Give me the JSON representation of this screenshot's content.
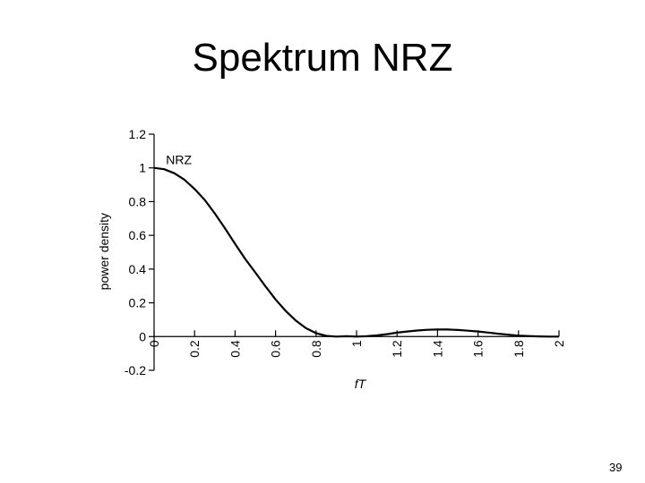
{
  "slide": {
    "title": "Spektrum NRZ",
    "page_number": "39"
  },
  "chart_data": {
    "type": "line",
    "title": "Spektrum NRZ",
    "xlabel": "fT",
    "ylabel": "power density",
    "xlim": [
      0,
      2
    ],
    "ylim": [
      -0.2,
      1.2
    ],
    "x_ticks": [
      0,
      0.2,
      0.4,
      0.6,
      0.8,
      1,
      1.2,
      1.4,
      1.6,
      1.8,
      2
    ],
    "x_tick_labels": [
      "0",
      "0.2",
      "0.4",
      "0.6",
      "0.8",
      "1",
      "1.2",
      "1.4",
      "1.6",
      "1.8",
      "2"
    ],
    "y_ticks": [
      -0.2,
      0,
      0.2,
      0.4,
      0.6,
      0.8,
      1,
      1.2
    ],
    "y_tick_labels": [
      "-0.2",
      "0",
      "0.2",
      "0.4",
      "0.6",
      "0.8",
      "1",
      "1.2"
    ],
    "grid": false,
    "legend": "none",
    "annotations": [
      {
        "text": "NRZ",
        "x": 0.05,
        "y": 1.05
      }
    ],
    "series": [
      {
        "name": "NRZ",
        "color": "#000000",
        "x": [
          0,
          0.05,
          0.1,
          0.15,
          0.2,
          0.25,
          0.3,
          0.35,
          0.4,
          0.45,
          0.5,
          0.55,
          0.6,
          0.65,
          0.7,
          0.75,
          0.8,
          0.85,
          0.9,
          0.95,
          1.0,
          1.05,
          1.1,
          1.15,
          1.2,
          1.25,
          1.3,
          1.35,
          1.4,
          1.45,
          1.5,
          1.55,
          1.6,
          1.65,
          1.7,
          1.75,
          1.8,
          1.85,
          1.9,
          1.95,
          2.0
        ],
        "values": [
          1.0,
          0.992,
          0.968,
          0.93,
          0.875,
          0.81,
          0.73,
          0.642,
          0.55,
          0.46,
          0.38,
          0.298,
          0.22,
          0.152,
          0.095,
          0.05,
          0.02,
          0.004,
          0.0,
          0.002,
          0.0,
          0.002,
          0.007,
          0.014,
          0.023,
          0.03,
          0.036,
          0.04,
          0.042,
          0.042,
          0.039,
          0.035,
          0.03,
          0.024,
          0.017,
          0.011,
          0.006,
          0.003,
          0.001,
          0.0,
          0.0
        ]
      }
    ]
  }
}
